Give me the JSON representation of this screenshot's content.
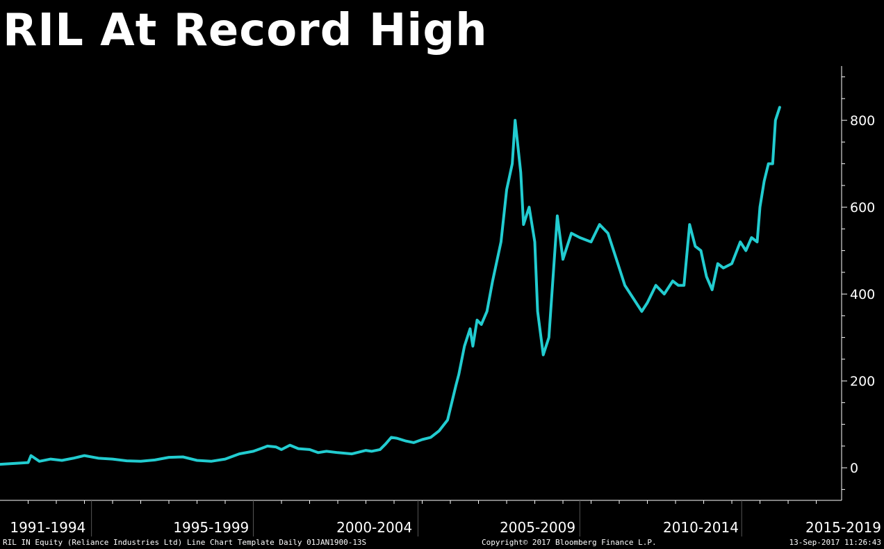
{
  "chart_data": {
    "type": "line",
    "title": "RIL At Record High",
    "xlabel": "",
    "ylabel": "",
    "ylim": [
      -75,
      925
    ],
    "xlim": [
      1990.0,
      2019.9
    ],
    "y_ticks": [
      0,
      200,
      400,
      600,
      800
    ],
    "x_period_labels": [
      "1991-1994",
      "1995-1999",
      "2000-2004",
      "2005-2009",
      "2010-2014",
      "2015-2019"
    ],
    "x_period_label_years": [
      1991.7,
      1997.5,
      2003.3,
      2009.1,
      2014.9,
      2020.0
    ],
    "x_period_boundaries": [
      1993.25,
      1999.0,
      2004.85,
      2010.6,
      2016.35
    ],
    "grid": false,
    "legend": "none",
    "line_color": "#22CCD0",
    "series": [
      {
        "x": [
          1990.0,
          1990.5,
          1991.0,
          1991.1,
          1991.4,
          1991.8,
          1992.2,
          1992.6,
          1992.8,
          1993.0,
          1993.5,
          1994.0,
          1994.5,
          1995.0,
          1995.5,
          1996.0,
          1996.5,
          1997.0,
          1997.5,
          1998.0,
          1998.5,
          1999.0,
          1999.3,
          1999.5,
          1999.8,
          2000.0,
          2000.3,
          2000.6,
          2001.0,
          2001.3,
          2001.6,
          2002.0,
          2002.5,
          2003.0,
          2003.2,
          2003.5,
          2003.7,
          2003.9,
          2004.1,
          2004.4,
          2004.7,
          2005.0,
          2005.3,
          2005.6,
          2005.9,
          2006.2,
          2006.3,
          2006.5,
          2006.7,
          2006.8,
          2006.95,
          2007.1,
          2007.3,
          2007.5,
          2007.8,
          2008.0,
          2008.2,
          2008.3,
          2008.5,
          2008.6,
          2008.8,
          2009.0,
          2009.1,
          2009.3,
          2009.5,
          2009.8,
          2010.0,
          2010.3,
          2010.6,
          2011.0,
          2011.3,
          2011.6,
          2011.9,
          2012.2,
          2012.5,
          2012.8,
          2013.0,
          2013.3,
          2013.6,
          2013.9,
          2014.1,
          2014.3,
          2014.5,
          2014.7,
          2014.9,
          2015.1,
          2015.3,
          2015.5,
          2015.7,
          2016.0,
          2016.3,
          2016.5,
          2016.7,
          2016.9,
          2017.0,
          2017.15,
          2017.3,
          2017.45,
          2017.55,
          2017.7
        ],
        "y": [
          8,
          10,
          12,
          28,
          15,
          20,
          17,
          22,
          25,
          28,
          22,
          20,
          16,
          15,
          18,
          24,
          25,
          17,
          15,
          20,
          32,
          38,
          45,
          50,
          48,
          42,
          52,
          44,
          42,
          35,
          38,
          35,
          32,
          40,
          38,
          42,
          55,
          70,
          68,
          62,
          58,
          65,
          70,
          85,
          110,
          190,
          215,
          280,
          320,
          280,
          340,
          330,
          360,
          430,
          520,
          640,
          700,
          800,
          680,
          560,
          600,
          520,
          360,
          260,
          300,
          580,
          480,
          540,
          530,
          520,
          560,
          540,
          480,
          420,
          390,
          360,
          380,
          420,
          400,
          430,
          420,
          420,
          560,
          510,
          500,
          440,
          410,
          470,
          460,
          470,
          520,
          500,
          530,
          520,
          600,
          660,
          700,
          700,
          800,
          830
        ]
      }
    ]
  },
  "footer": {
    "left": "RIL IN Equity (Reliance Industries Ltd) Line Chart Template  Daily 01JAN1900-13S",
    "center": "Copyright© 2017 Bloomberg Finance L.P.",
    "right": "13-Sep-2017 11:26:43"
  }
}
